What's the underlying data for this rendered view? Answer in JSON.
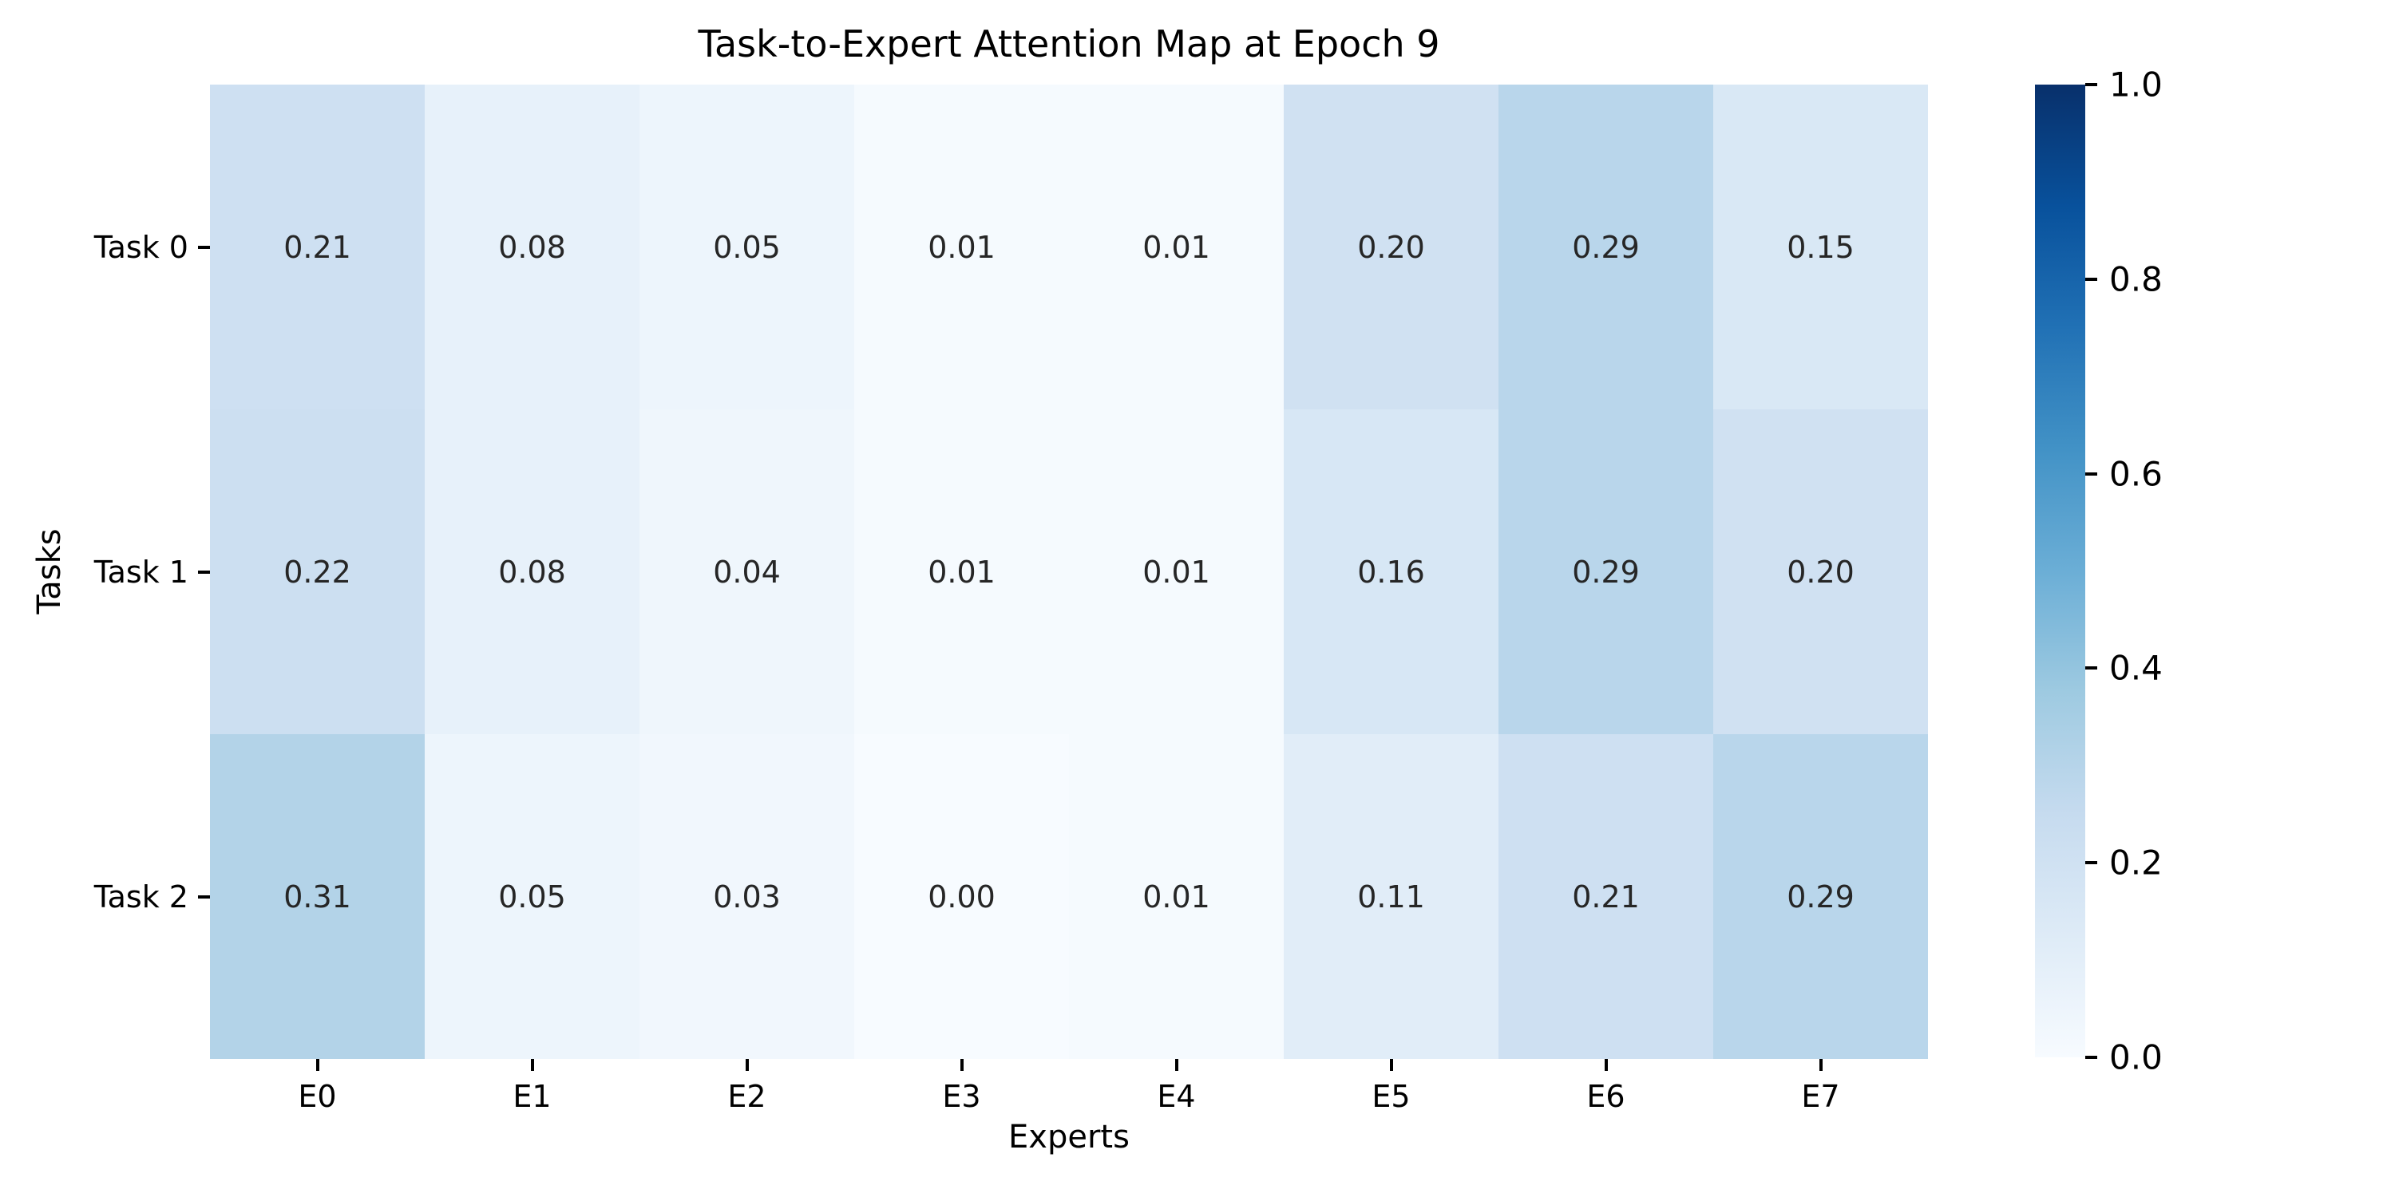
{
  "chart_data": {
    "type": "heatmap",
    "title": "Task-to-Expert Attention Map at Epoch 9",
    "xlabel": "Experts",
    "ylabel": "Tasks",
    "x_categories": [
      "E0",
      "E1",
      "E2",
      "E3",
      "E4",
      "E5",
      "E6",
      "E7"
    ],
    "y_categories": [
      "Task 0",
      "Task 1",
      "Task 2"
    ],
    "values": [
      [
        0.21,
        0.08,
        0.05,
        0.01,
        0.01,
        0.2,
        0.29,
        0.15
      ],
      [
        0.22,
        0.08,
        0.04,
        0.01,
        0.01,
        0.16,
        0.29,
        0.2
      ],
      [
        0.31,
        0.05,
        0.03,
        0.0,
        0.01,
        0.11,
        0.21,
        0.29
      ]
    ],
    "annotation_decimals": 2,
    "colormap": "Blues",
    "vmin": 0.0,
    "vmax": 1.0,
    "colorbar_tick_labels": [
      "1.0",
      "0.8",
      "0.6",
      "0.4",
      "0.2",
      "0.0"
    ],
    "colormap_anchors": [
      {
        "pos": 0.0,
        "color": "#f7fbff"
      },
      {
        "pos": 0.125,
        "color": "#deebf7"
      },
      {
        "pos": 0.25,
        "color": "#c6dbef"
      },
      {
        "pos": 0.375,
        "color": "#9ecae1"
      },
      {
        "pos": 0.5,
        "color": "#6baed6"
      },
      {
        "pos": 0.625,
        "color": "#4292c6"
      },
      {
        "pos": 0.75,
        "color": "#2171b5"
      },
      {
        "pos": 0.875,
        "color": "#08519c"
      },
      {
        "pos": 1.0,
        "color": "#08306b"
      }
    ],
    "annotation_color": "#262626",
    "axis_text_color": "#000000",
    "background_color": "#ffffff",
    "legend_position": "right-colorbar",
    "grid": false
  }
}
